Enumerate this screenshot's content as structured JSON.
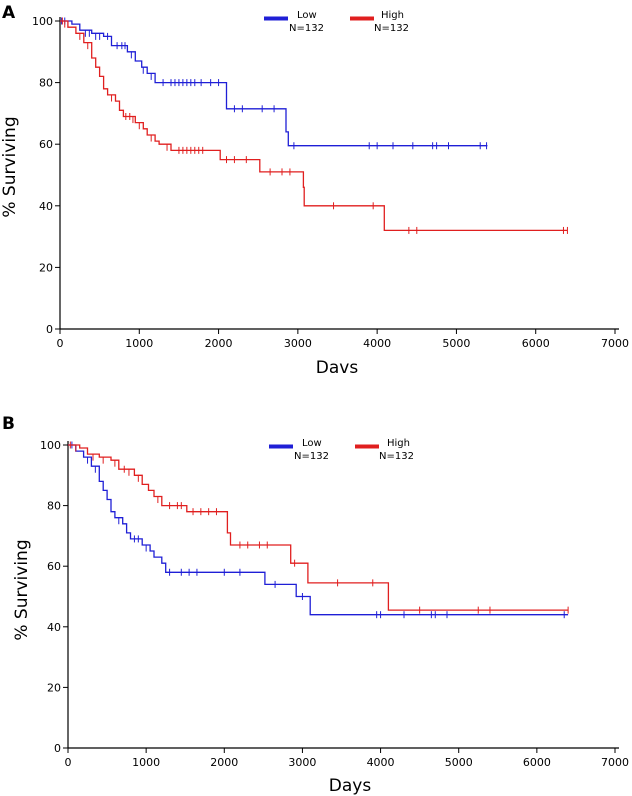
{
  "chart_data": [
    {
      "type": "line",
      "panel_label": "A",
      "xlabel": "Davs",
      "ylabel": "% Surviving",
      "xlim": [
        0,
        7000
      ],
      "ylim": [
        0,
        100
      ],
      "x_ticks": [
        0,
        1000,
        2000,
        3000,
        4000,
        5000,
        6000,
        7000
      ],
      "y_ticks": [
        0,
        20,
        40,
        60,
        80,
        100
      ],
      "legend_position": "top-center",
      "series": [
        {
          "name": "Low",
          "n_label": "N=132",
          "color": "#1f1fd6",
          "steps": [
            [
              0,
              100
            ],
            [
              150,
              99
            ],
            [
              250,
              97
            ],
            [
              400,
              96
            ],
            [
              550,
              95
            ],
            [
              650,
              92
            ],
            [
              850,
              90
            ],
            [
              950,
              87
            ],
            [
              1030,
              85
            ],
            [
              1100,
              83
            ],
            [
              1200,
              80
            ],
            [
              2080,
              80
            ],
            [
              2100,
              71.5
            ],
            [
              2830,
              71.5
            ],
            [
              2850,
              64
            ],
            [
              2880,
              59.5
            ],
            [
              5390,
              59.5
            ]
          ],
          "censored": [
            [
              20,
              100
            ],
            [
              60,
              100
            ],
            [
              320,
              96
            ],
            [
              370,
              96
            ],
            [
              450,
              95
            ],
            [
              500,
              95
            ],
            [
              600,
              95
            ],
            [
              720,
              92
            ],
            [
              780,
              92
            ],
            [
              820,
              92
            ],
            [
              900,
              89
            ],
            [
              1050,
              84
            ],
            [
              1150,
              82
            ],
            [
              1300,
              80
            ],
            [
              1400,
              80
            ],
            [
              1450,
              80
            ],
            [
              1500,
              80
            ],
            [
              1550,
              80
            ],
            [
              1600,
              80
            ],
            [
              1650,
              80
            ],
            [
              1700,
              80
            ],
            [
              1780,
              80
            ],
            [
              1900,
              80
            ],
            [
              2000,
              80
            ],
            [
              2200,
              71.5
            ],
            [
              2300,
              71.5
            ],
            [
              2550,
              71.5
            ],
            [
              2700,
              71.5
            ],
            [
              2950,
              59.5
            ],
            [
              3900,
              59.5
            ],
            [
              4000,
              59.5
            ],
            [
              4200,
              59.5
            ],
            [
              4450,
              59.5
            ],
            [
              4700,
              59.5
            ],
            [
              4750,
              59.5
            ],
            [
              4900,
              59.5
            ],
            [
              5300,
              59.5
            ],
            [
              5380,
              59.5
            ]
          ]
        },
        {
          "name": "High",
          "n_label": "N=132",
          "color": "#e01f1f",
          "steps": [
            [
              0,
              100
            ],
            [
              100,
              98
            ],
            [
              200,
              96
            ],
            [
              300,
              93
            ],
            [
              400,
              88
            ],
            [
              450,
              85
            ],
            [
              500,
              82
            ],
            [
              550,
              78
            ],
            [
              600,
              76
            ],
            [
              700,
              74
            ],
            [
              750,
              71
            ],
            [
              800,
              69
            ],
            [
              950,
              67
            ],
            [
              1050,
              65
            ],
            [
              1100,
              63
            ],
            [
              1200,
              61
            ],
            [
              1250,
              60
            ],
            [
              1400,
              58
            ],
            [
              2000,
              58
            ],
            [
              2020,
              55
            ],
            [
              2500,
              55
            ],
            [
              2520,
              51
            ],
            [
              3050,
              51
            ],
            [
              3070,
              46
            ],
            [
              3080,
              40
            ],
            [
              4080,
              40
            ],
            [
              4090,
              32
            ],
            [
              6400,
              32
            ]
          ],
          "censored": [
            [
              30,
              100
            ],
            [
              60,
              99
            ],
            [
              250,
              95
            ],
            [
              350,
              92
            ],
            [
              650,
              75
            ],
            [
              830,
              69
            ],
            [
              880,
              69
            ],
            [
              920,
              68
            ],
            [
              1000,
              66
            ],
            [
              1150,
              62
            ],
            [
              1350,
              59
            ],
            [
              1500,
              58
            ],
            [
              1550,
              58
            ],
            [
              1600,
              58
            ],
            [
              1650,
              58
            ],
            [
              1700,
              58
            ],
            [
              1750,
              58
            ],
            [
              1800,
              58
            ],
            [
              2100,
              55
            ],
            [
              2200,
              55
            ],
            [
              2350,
              55
            ],
            [
              2650,
              51
            ],
            [
              2800,
              51
            ],
            [
              2900,
              51
            ],
            [
              3450,
              40
            ],
            [
              3950,
              40
            ],
            [
              4400,
              32
            ],
            [
              4500,
              32
            ],
            [
              6350,
              32
            ],
            [
              6400,
              32
            ]
          ]
        }
      ]
    },
    {
      "type": "line",
      "panel_label": "B",
      "xlabel": "Days",
      "ylabel": "% Surviving",
      "xlim": [
        0,
        7000
      ],
      "ylim": [
        0,
        100
      ],
      "x_ticks": [
        0,
        1000,
        2000,
        3000,
        4000,
        5000,
        6000,
        7000
      ],
      "y_ticks": [
        0,
        20,
        40,
        60,
        80,
        100
      ],
      "legend_position": "top-center",
      "series": [
        {
          "name": "Low",
          "n_label": "N=132",
          "color": "#1f1fd6",
          "steps": [
            [
              0,
              100
            ],
            [
              100,
              98
            ],
            [
              200,
              96
            ],
            [
              300,
              93
            ],
            [
              400,
              88
            ],
            [
              450,
              85
            ],
            [
              500,
              82
            ],
            [
              550,
              78
            ],
            [
              600,
              76
            ],
            [
              700,
              74
            ],
            [
              750,
              71
            ],
            [
              800,
              69
            ],
            [
              950,
              67
            ],
            [
              1050,
              65
            ],
            [
              1100,
              63
            ],
            [
              1200,
              61
            ],
            [
              1250,
              58
            ],
            [
              2500,
              58
            ],
            [
              2520,
              54
            ],
            [
              2900,
              54
            ],
            [
              2920,
              50
            ],
            [
              3080,
              50
            ],
            [
              3100,
              44
            ],
            [
              6400,
              44
            ]
          ],
          "censored": [
            [
              50,
              100
            ],
            [
              250,
              95
            ],
            [
              350,
              92
            ],
            [
              650,
              75
            ],
            [
              850,
              69
            ],
            [
              900,
              69
            ],
            [
              1000,
              66
            ],
            [
              1300,
              58
            ],
            [
              1450,
              58
            ],
            [
              1550,
              58
            ],
            [
              1650,
              58
            ],
            [
              2000,
              58
            ],
            [
              2200,
              58
            ],
            [
              2650,
              54
            ],
            [
              3000,
              50
            ],
            [
              3950,
              44
            ],
            [
              4000,
              44
            ],
            [
              4300,
              44
            ],
            [
              4650,
              44
            ],
            [
              4700,
              44
            ],
            [
              4850,
              44
            ],
            [
              6350,
              44
            ]
          ]
        },
        {
          "name": "High",
          "n_label": "N=132",
          "color": "#e01f1f",
          "steps": [
            [
              0,
              100
            ],
            [
              150,
              99
            ],
            [
              250,
              97
            ],
            [
              400,
              96
            ],
            [
              550,
              95
            ],
            [
              650,
              92
            ],
            [
              850,
              90
            ],
            [
              950,
              87
            ],
            [
              1030,
              85
            ],
            [
              1100,
              83
            ],
            [
              1200,
              80
            ],
            [
              1500,
              80
            ],
            [
              1520,
              78
            ],
            [
              2000,
              78
            ],
            [
              2040,
              71
            ],
            [
              2080,
              67
            ],
            [
              2830,
              67
            ],
            [
              2850,
              61
            ],
            [
              3050,
              61
            ],
            [
              3070,
              54.5
            ],
            [
              4080,
              54.5
            ],
            [
              4100,
              45.5
            ],
            [
              6400,
              45.5
            ]
          ],
          "censored": [
            [
              30,
              100
            ],
            [
              100,
              99
            ],
            [
              320,
              96
            ],
            [
              450,
              95
            ],
            [
              600,
              94
            ],
            [
              720,
              92
            ],
            [
              780,
              91
            ],
            [
              900,
              89
            ],
            [
              1150,
              82
            ],
            [
              1300,
              80
            ],
            [
              1400,
              80
            ],
            [
              1450,
              80
            ],
            [
              1600,
              78
            ],
            [
              1700,
              78
            ],
            [
              1800,
              78
            ],
            [
              1900,
              78
            ],
            [
              2200,
              67
            ],
            [
              2300,
              67
            ],
            [
              2450,
              67
            ],
            [
              2550,
              67
            ],
            [
              2900,
              61
            ],
            [
              3450,
              54.5
            ],
            [
              3900,
              54.5
            ],
            [
              4500,
              45.5
            ],
            [
              5250,
              45.5
            ],
            [
              5400,
              45.5
            ],
            [
              6400,
              45.5
            ]
          ]
        }
      ]
    }
  ]
}
